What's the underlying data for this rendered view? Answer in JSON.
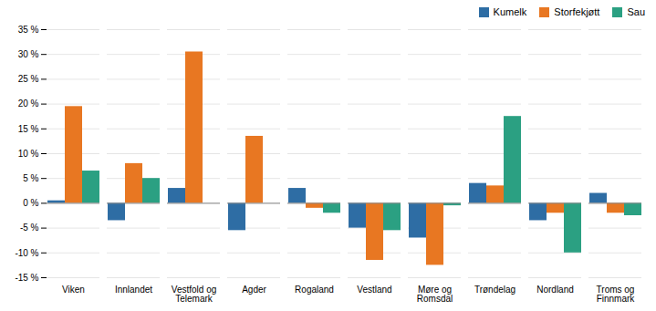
{
  "chart_data": {
    "type": "bar",
    "categories": [
      "Viken",
      "Innlandet",
      "Vestfold og\nTelemark",
      "Agder",
      "Rogaland",
      "Vestland",
      "Møre og\nRomsdal",
      "Trøndelag",
      "Nordland",
      "Troms og\nFinnmark"
    ],
    "series": [
      {
        "name": "Kumelk",
        "color": "#2E6DA4",
        "values": [
          0.5,
          -3.5,
          3.0,
          -5.5,
          3.0,
          -5.0,
          -7.0,
          4.0,
          -3.5,
          2.0
        ]
      },
      {
        "name": "Storfekjøtt",
        "color": "#E87722",
        "values": [
          19.5,
          8.0,
          30.5,
          13.5,
          -1.0,
          -11.5,
          -12.5,
          3.5,
          -2.0,
          -2.0
        ]
      },
      {
        "name": "Sau",
        "color": "#2BA082",
        "values": [
          6.5,
          5.0,
          null,
          null,
          -2.0,
          -5.5,
          -0.5,
          17.5,
          -10.0,
          -2.5
        ]
      }
    ],
    "ylim": [
      -15,
      35
    ],
    "yticks": [
      {
        "value": -15,
        "label": "-15 %"
      },
      {
        "value": -10,
        "label": "-10 %"
      },
      {
        "value": -5,
        "label": "-5 %"
      },
      {
        "value": 0,
        "label": "0 %"
      },
      {
        "value": 5,
        "label": "5 %"
      },
      {
        "value": 10,
        "label": "10 %"
      },
      {
        "value": 15,
        "label": "15 %"
      },
      {
        "value": 20,
        "label": "20 %"
      },
      {
        "value": 25,
        "label": "25 %"
      },
      {
        "value": 30,
        "label": "30 %"
      },
      {
        "value": 35,
        "label": "35 %"
      }
    ],
    "grid": true,
    "legend": "upper right"
  }
}
